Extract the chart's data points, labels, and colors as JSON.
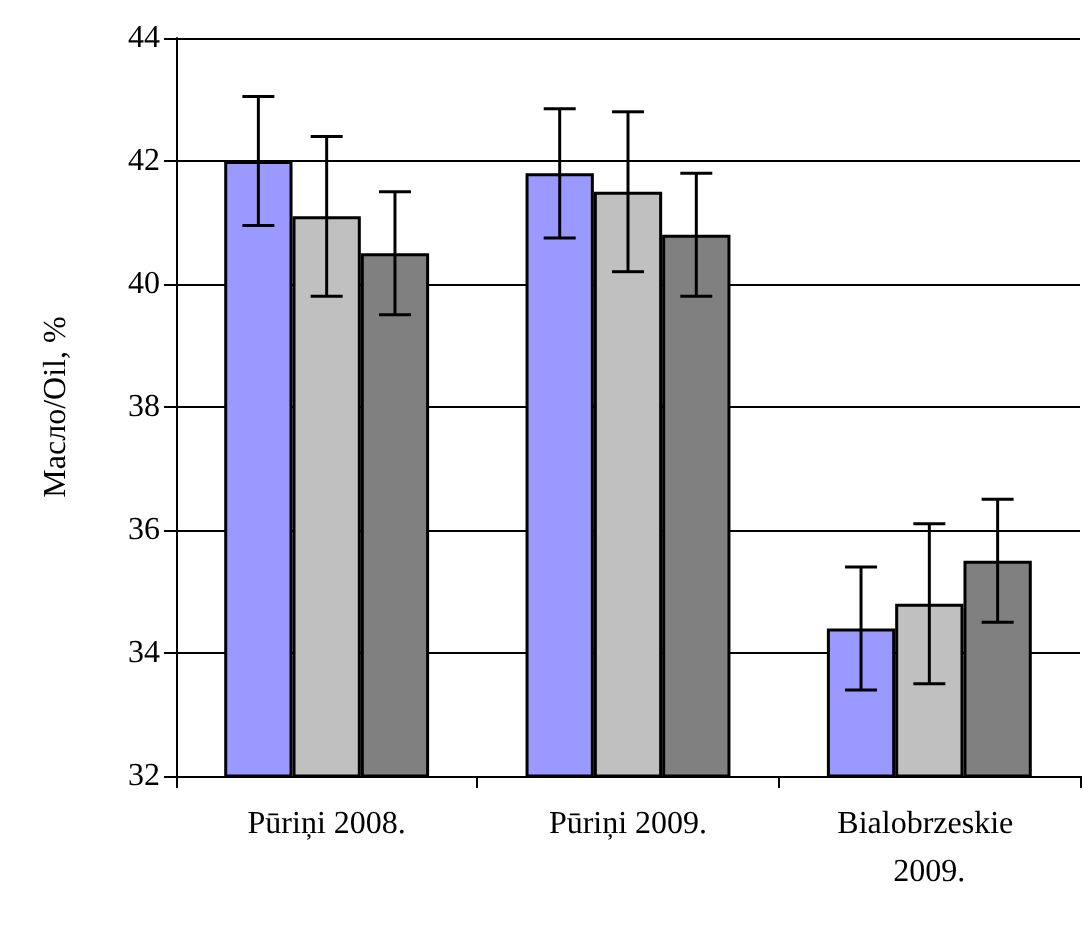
{
  "chart_data": {
    "type": "bar",
    "ylabel": "Масло/Oil, %",
    "categories": [
      "Pūriņi 2008.",
      "Pūriņi 2009.",
      "Bialobrzeskie 2009."
    ],
    "series": [
      {
        "color": "#9999ff",
        "values": [
          42.0,
          41.8,
          34.4
        ],
        "errors": [
          1.05,
          1.05,
          1.0
        ]
      },
      {
        "color": "#c0c0c0",
        "values": [
          41.1,
          41.5,
          34.8
        ],
        "errors": [
          1.3,
          1.3,
          1.3
        ]
      },
      {
        "color": "#808080",
        "values": [
          40.5,
          40.8,
          35.5
        ],
        "errors": [
          1.0,
          1.0,
          1.0
        ]
      }
    ],
    "ylim": [
      32,
      44
    ],
    "yticks": [
      32,
      34,
      36,
      38,
      40,
      42,
      44
    ],
    "grid": "y"
  }
}
